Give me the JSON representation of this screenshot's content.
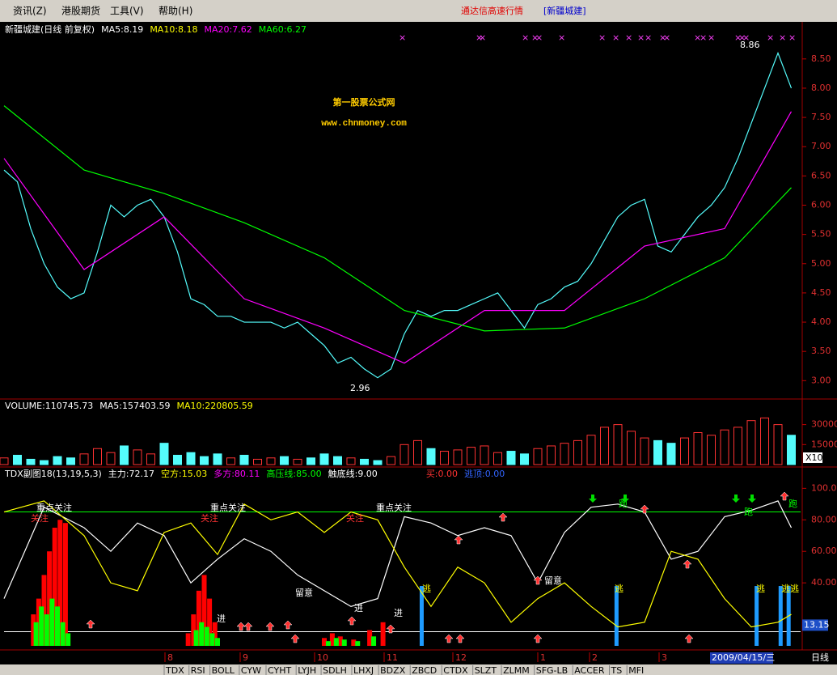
{
  "menu": {
    "items": [
      "资讯(Z)",
      "港股期货",
      "工具(V)",
      "帮助(H)"
    ],
    "app_title": "通达信高速行情",
    "stock_tag": "[新疆城建]"
  },
  "watermark": {
    "title": "第一股票公式网",
    "url": "www.chnmoney.com"
  },
  "panels": [
    {
      "type": "line",
      "legend": [
        {
          "text": "新疆城建(日线 前复权)",
          "color": "#ffffff"
        },
        {
          "text": "MA5:8.19",
          "color": "#ffffff"
        },
        {
          "text": "MA10:8.18",
          "color": "#ffff00"
        },
        {
          "text": "MA20:7.62",
          "color": "#ff00ff"
        },
        {
          "text": "MA60:6.27",
          "color": "#00ff00"
        }
      ],
      "ylim": [
        2.7,
        9.12
      ],
      "yticks": [
        {
          "value": 3,
          "label": "3.00"
        },
        {
          "value": 3.5,
          "label": "3.50"
        },
        {
          "value": 4,
          "label": "4.00"
        },
        {
          "value": 4.5,
          "label": "4.50"
        },
        {
          "value": 5,
          "label": "5.00"
        },
        {
          "value": 5.5,
          "label": "5.50"
        },
        {
          "value": 6,
          "label": "6.00"
        },
        {
          "value": 6.5,
          "label": "6.50"
        },
        {
          "value": 7,
          "label": "7.00"
        },
        {
          "value": 7.5,
          "label": "7.50"
        },
        {
          "value": 8,
          "label": "8.00"
        },
        {
          "value": 8.5,
          "label": "8.50"
        }
      ],
      "series": [
        {
          "color": "#54fcfc",
          "x": [
            0,
            1,
            2,
            3,
            4,
            5,
            6,
            7,
            8,
            9,
            10,
            11,
            12,
            13,
            14,
            15,
            16,
            17,
            18,
            19,
            20,
            21,
            22,
            23,
            24,
            25,
            26,
            27,
            28,
            29,
            30,
            31,
            32,
            33,
            34,
            35,
            36,
            37,
            38,
            39,
            40,
            41,
            42,
            43,
            44,
            45,
            46,
            47,
            48,
            49,
            50,
            51,
            52,
            53,
            54,
            55,
            56,
            57,
            58,
            59
          ],
          "values": [
            6.6,
            6.4,
            5.6,
            5.0,
            4.6,
            4.4,
            4.5,
            5.2,
            6.0,
            5.8,
            6.0,
            6.1,
            5.8,
            5.2,
            4.4,
            4.3,
            4.1,
            4.1,
            4.0,
            4.0,
            4.0,
            3.9,
            4.0,
            3.8,
            3.6,
            3.3,
            3.4,
            3.2,
            3.05,
            3.2,
            3.8,
            4.2,
            4.1,
            4.2,
            4.2,
            4.3,
            4.4,
            4.5,
            4.2,
            3.9,
            4.3,
            4.4,
            4.6,
            4.7,
            5.0,
            5.4,
            5.8,
            6.0,
            6.1,
            5.3,
            5.2,
            5.5,
            5.8,
            6.0,
            6.3,
            6.8,
            7.4,
            8.0,
            8.6,
            8.0
          ]
        },
        {
          "color": "#ff00ff",
          "x": [
            0,
            6,
            12,
            18,
            24,
            30,
            36,
            42,
            48,
            54,
            59
          ],
          "values": [
            6.8,
            4.9,
            5.8,
            4.4,
            3.9,
            3.3,
            4.2,
            4.2,
            5.3,
            5.6,
            7.6
          ]
        },
        {
          "color": "#00ff00",
          "x": [
            0,
            6,
            12,
            18,
            24,
            30,
            36,
            42,
            48,
            54,
            59
          ],
          "values": [
            7.7,
            6.6,
            6.2,
            5.7,
            5.1,
            4.2,
            3.85,
            3.9,
            4.4,
            5.1,
            6.3
          ]
        }
      ],
      "high_label": {
        "value": 8.86,
        "label": "8.86"
      },
      "low_label": {
        "value": 2.96,
        "label": "2.96"
      }
    },
    {
      "type": "bar",
      "legend": [
        {
          "text": "VOLUME:110745.73",
          "color": "#ffffff"
        },
        {
          "text": "MA5:157403.59",
          "color": "#ffffff"
        },
        {
          "text": "MA10:220805.59",
          "color": "#ffff00"
        }
      ],
      "ylim": [
        0,
        48600
      ],
      "yticks": [
        15000,
        30000
      ],
      "scale_label": "X10",
      "colors": [
        "#ff3232",
        "#54fcfc"
      ],
      "values": [
        5000,
        7000,
        4000,
        3000,
        6000,
        5000,
        8000,
        12000,
        9000,
        14000,
        11000,
        8000,
        16000,
        7000,
        9000,
        6000,
        8000,
        5000,
        7000,
        4000,
        5000,
        6000,
        4000,
        5000,
        8000,
        6000,
        5000,
        4000,
        3000,
        6000,
        15000,
        18000,
        12000,
        10000,
        11000,
        13000,
        14000,
        9000,
        10000,
        8000,
        12000,
        14000,
        16000,
        18000,
        22000,
        28000,
        30000,
        25000,
        20000,
        18000,
        16000,
        20000,
        24000,
        22000,
        26000,
        28000,
        33000,
        35000,
        30000,
        22000
      ]
    },
    {
      "type": "line",
      "legend": [
        {
          "text": "TDX副图18(13,19,5,3)",
          "color": "#ffffff"
        },
        {
          "text": "主力:72.17",
          "color": "#ffffff"
        },
        {
          "text": "空方:15.03",
          "color": "#ffff00"
        },
        {
          "text": "多方:80.11",
          "color": "#ff00ff"
        },
        {
          "text": "高压线:85.00",
          "color": "#00ff00"
        },
        {
          "text": "触底线:9.00",
          "color": "#ffffff"
        },
        {
          "text": "买:0.00",
          "color": "#ff3232"
        },
        {
          "text": "逃顶:0.00",
          "color": "#3264ff"
        }
      ],
      "ylim": [
        0,
        112
      ],
      "yticks": [
        {
          "value": 40,
          "label": "40.00"
        },
        {
          "value": 60,
          "label": "60.00"
        },
        {
          "value": 80,
          "label": "80.00"
        },
        {
          "value": 100,
          "label": "100.0"
        }
      ],
      "levels": [
        {
          "value": 85,
          "color": "#00ff00"
        },
        {
          "value": 9,
          "color": "#ffffff"
        }
      ],
      "current": {
        "value": 13.15,
        "label": "13.15"
      },
      "series": [
        {
          "color": "#ffffff",
          "x": [
            0,
            3,
            6,
            8,
            10,
            12,
            14,
            16,
            18,
            20,
            22,
            24,
            26,
            28,
            30,
            32,
            34,
            36,
            38,
            40,
            42,
            44,
            46,
            48,
            50,
            52,
            54,
            56,
            58,
            59
          ],
          "values": [
            30,
            88,
            75,
            60,
            78,
            70,
            40,
            55,
            68,
            60,
            45,
            35,
            25,
            30,
            82,
            78,
            70,
            75,
            70,
            40,
            72,
            88,
            90,
            85,
            55,
            60,
            82,
            86,
            92,
            75
          ]
        },
        {
          "color": "#ffff00",
          "x": [
            0,
            3,
            6,
            8,
            10,
            12,
            14,
            16,
            18,
            20,
            22,
            24,
            26,
            28,
            30,
            32,
            34,
            36,
            38,
            40,
            42,
            44,
            46,
            48,
            50,
            52,
            54,
            56,
            58,
            59
          ],
          "values": [
            85,
            92,
            70,
            40,
            35,
            72,
            78,
            58,
            90,
            80,
            85,
            72,
            85,
            80,
            50,
            25,
            50,
            40,
            15,
            30,
            40,
            25,
            12,
            15,
            60,
            55,
            30,
            12,
            15,
            20
          ]
        }
      ],
      "bars": [
        {
          "color": "#ff0000",
          "x": [
            2.2,
            2.6,
            3.0,
            3.4,
            3.8,
            4.2,
            4.6,
            13.8,
            14.2,
            14.6,
            15.0,
            15.4,
            15.8,
            24.0,
            24.6,
            25.2,
            26.2,
            27.4,
            28.4
          ],
          "values": [
            20,
            30,
            45,
            60,
            75,
            80,
            78,
            8,
            20,
            35,
            45,
            30,
            15,
            5,
            8,
            6,
            4,
            10,
            15
          ]
        },
        {
          "color": "#00ff00",
          "x": [
            2.4,
            2.8,
            3.2,
            3.6,
            4.0,
            4.4,
            4.8,
            14.4,
            14.8,
            15.2,
            15.6,
            16.0,
            24.3,
            24.9,
            25.5,
            26.5,
            27.7
          ],
          "values": [
            15,
            25,
            20,
            30,
            25,
            15,
            8,
            10,
            15,
            12,
            8,
            5,
            3,
            5,
            4,
            3,
            6
          ]
        },
        {
          "color": "#1e9bff",
          "x": [
            31.3,
            45.9,
            56.4,
            58.2,
            58.8
          ],
          "values": [
            38,
            38,
            38,
            38,
            38
          ]
        }
      ],
      "annotations": [
        {
          "text": "重点关注",
          "color": "#ffffff"
        },
        {
          "text": "重点关注",
          "color": "#ffffff"
        },
        {
          "text": "重点关注",
          "color": "#ffffff"
        },
        {
          "text": "关注",
          "color": "#ff3232"
        },
        {
          "text": "关注",
          "color": "#ff3232"
        },
        {
          "text": "关注",
          "color": "#ff3232"
        },
        {
          "text": "留意",
          "color": "#ffffff"
        },
        {
          "text": "留意",
          "color": "#ffffff"
        },
        {
          "text": "进",
          "color": "#ffffff"
        },
        {
          "text": "进",
          "color": "#ffffff"
        },
        {
          "text": "进",
          "color": "#ffffff"
        },
        {
          "text": "逃",
          "color": "#ffff00"
        },
        {
          "text": "逃",
          "color": "#ffff00"
        },
        {
          "text": "逃",
          "color": "#ffff00"
        },
        {
          "text": "逃逃",
          "color": "#ffff00"
        },
        {
          "text": "跑",
          "color": "#00ff00"
        },
        {
          "text": "跑",
          "color": "#00ff00"
        },
        {
          "text": "跑",
          "color": "#00ff00"
        }
      ]
    }
  ],
  "dates": {
    "months": [
      "8",
      "9",
      "10",
      "11",
      "12",
      "1",
      "2",
      "3"
    ],
    "current": "2009/04/15/三",
    "period": "日线"
  },
  "tabs": [
    "TDX",
    "RSI",
    "BOLL",
    "CYW",
    "CYHT",
    "LYJH",
    "SDLH",
    "LHXJ",
    "BDZX",
    "ZBCD",
    "CTDX",
    "SLZT",
    "ZLMM",
    "SFG-LB",
    "ACCER",
    "TS",
    "MFI"
  ]
}
